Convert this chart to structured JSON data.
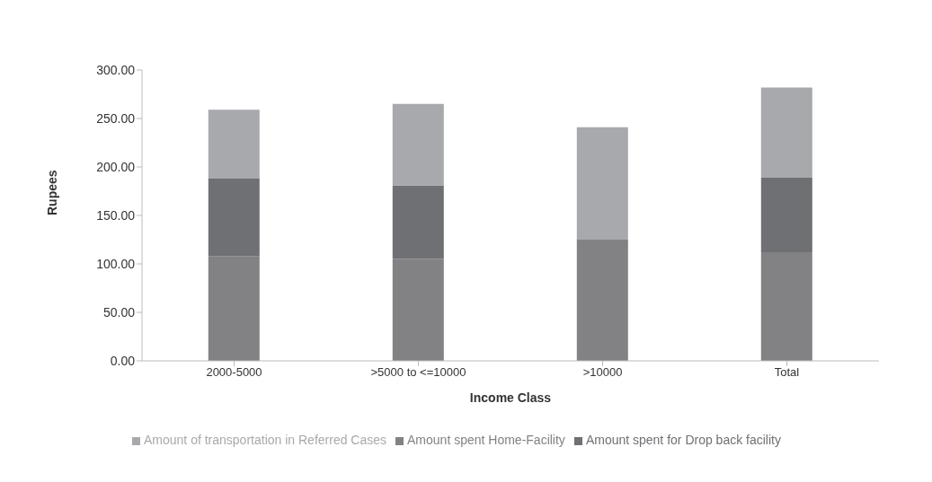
{
  "chart_data": {
    "type": "bar",
    "stacked": true,
    "xlabel": "Income Class",
    "ylabel": "Rupees",
    "categories": [
      "2000-5000",
      ">5000 to <=10000",
      ">10000",
      "Total"
    ],
    "series": [
      {
        "name": "Amount spent Home-Facility",
        "color": "#828285",
        "values": [
          108,
          105,
          125,
          112
        ]
      },
      {
        "name": "Amount spent for Drop back facility",
        "color": "#6f7074",
        "values": [
          80,
          76,
          0,
          77
        ]
      },
      {
        "name": "Amount of transportation in Referred Cases",
        "color": "#a8a9ad",
        "values": [
          71,
          84,
          116,
          93
        ]
      }
    ],
    "ylim": [
      0,
      300
    ],
    "yticks": [
      {
        "value": 0,
        "label": "0.00"
      },
      {
        "value": 50,
        "label": "50.00"
      },
      {
        "value": 100,
        "label": "100.00"
      },
      {
        "value": 150,
        "label": "150.00"
      },
      {
        "value": 200,
        "label": "200.00"
      },
      {
        "value": 250,
        "label": "250.00"
      },
      {
        "value": 300,
        "label": "300.00"
      }
    ],
    "grid": false,
    "legend": "bottom"
  }
}
